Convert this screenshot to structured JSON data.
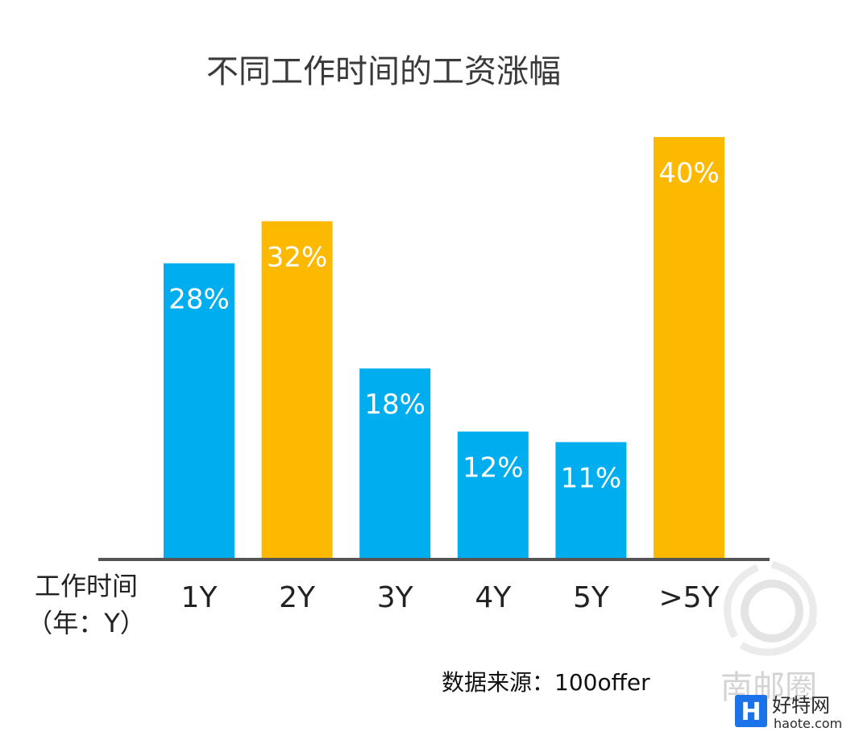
{
  "chart_data": {
    "type": "bar",
    "title": "不同工作时间的工资涨幅",
    "categories": [
      "1Y",
      "2Y",
      "3Y",
      "4Y",
      "5Y",
      ">5Y"
    ],
    "values": [
      28,
      32,
      18,
      12,
      11,
      40
    ],
    "value_labels": [
      "28%",
      "32%",
      "18%",
      "12%",
      "11%",
      "40%"
    ],
    "ylim": [
      0,
      40
    ],
    "colors": [
      "#00AEEF",
      "#FDB900",
      "#00AEEF",
      "#00AEEF",
      "#00AEEF",
      "#FDB900"
    ],
    "xlabel_line1": "工作时间",
    "xlabel_line2": "（年：Y）",
    "grid": false,
    "legend": "none"
  },
  "source_text": "数据来源：100offer",
  "watermark": {
    "text": "南邮圈"
  },
  "logo": {
    "mark": "H",
    "name": "好特网",
    "url": "haote.com",
    "color": "#1a73e8"
  }
}
